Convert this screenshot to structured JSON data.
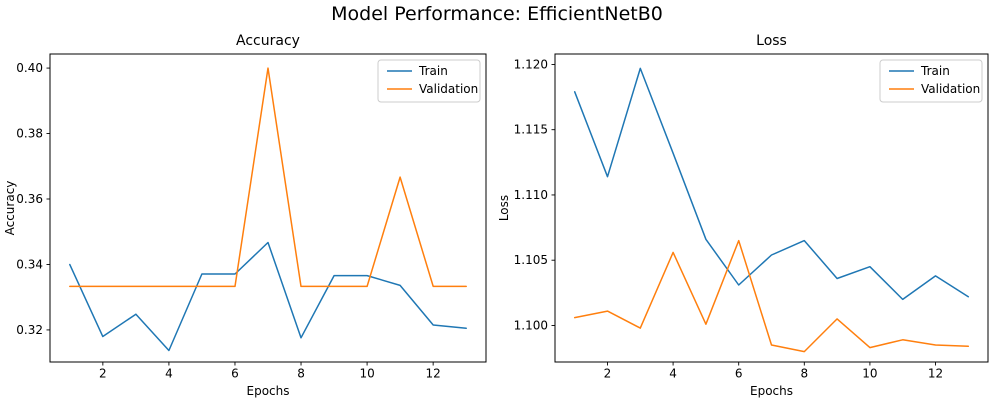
{
  "figure_title": "Model Performance: EfficientNetB0",
  "colors": {
    "train": "#1f77b4",
    "validation": "#ff7f0e",
    "legend_border": "#cccccc",
    "axes": "#000000"
  },
  "chart_data": [
    {
      "type": "line",
      "title": "Accuracy",
      "xlabel": "Epochs",
      "ylabel": "Accuracy",
      "x": [
        1,
        2,
        3,
        4,
        5,
        6,
        7,
        8,
        9,
        10,
        11,
        12,
        13
      ],
      "xticks": [
        2,
        4,
        6,
        8,
        10,
        12
      ],
      "xlim": [
        0.4,
        13.6
      ],
      "ylim": [
        0.3102,
        0.4043
      ],
      "yticks": [
        {
          "value": 0.32,
          "label": "0.32"
        },
        {
          "value": 0.34,
          "label": "0.34"
        },
        {
          "value": 0.36,
          "label": "0.36"
        },
        {
          "value": 0.38,
          "label": "0.38"
        },
        {
          "value": 0.4,
          "label": "0.40"
        }
      ],
      "grid": false,
      "legend_position": "upper right",
      "series": [
        {
          "name": "Train",
          "color": "#1f77b4",
          "values": [
            0.34,
            0.318,
            0.3248,
            0.3137,
            0.3371,
            0.3371,
            0.3467,
            0.3176,
            0.3366,
            0.3366,
            0.3336,
            0.3215,
            0.3205
          ]
        },
        {
          "name": "Validation",
          "color": "#ff7f0e",
          "values": [
            0.3333,
            0.3333,
            0.3333,
            0.3333,
            0.3333,
            0.3333,
            0.4,
            0.3333,
            0.3333,
            0.3333,
            0.3667,
            0.3333,
            0.3333
          ]
        }
      ]
    },
    {
      "type": "line",
      "title": "Loss",
      "xlabel": "Epochs",
      "ylabel": "Loss",
      "x": [
        1,
        2,
        3,
        4,
        5,
        6,
        7,
        8,
        9,
        10,
        11,
        12,
        13
      ],
      "xticks": [
        2,
        4,
        6,
        8,
        10,
        12
      ],
      "xlim": [
        0.4,
        13.6
      ],
      "ylim": [
        1.0972,
        1.1208
      ],
      "yticks": [
        {
          "value": 1.1,
          "label": "1.100"
        },
        {
          "value": 1.105,
          "label": "1.105"
        },
        {
          "value": 1.11,
          "label": "1.110"
        },
        {
          "value": 1.115,
          "label": "1.115"
        },
        {
          "value": 1.12,
          "label": "1.120"
        }
      ],
      "grid": false,
      "legend_position": "upper right",
      "series": [
        {
          "name": "Train",
          "color": "#1f77b4",
          "values": [
            1.1179,
            1.1114,
            1.1197,
            1.1132,
            1.1066,
            1.1031,
            1.1054,
            1.1065,
            1.1036,
            1.1045,
            1.102,
            1.1038,
            1.1022
          ]
        },
        {
          "name": "Validation",
          "color": "#ff7f0e",
          "values": [
            1.1006,
            1.1011,
            1.0998,
            1.1056,
            1.1001,
            1.1065,
            1.0985,
            1.098,
            1.1005,
            1.0983,
            1.0989,
            1.0985,
            1.0984
          ]
        }
      ]
    }
  ]
}
